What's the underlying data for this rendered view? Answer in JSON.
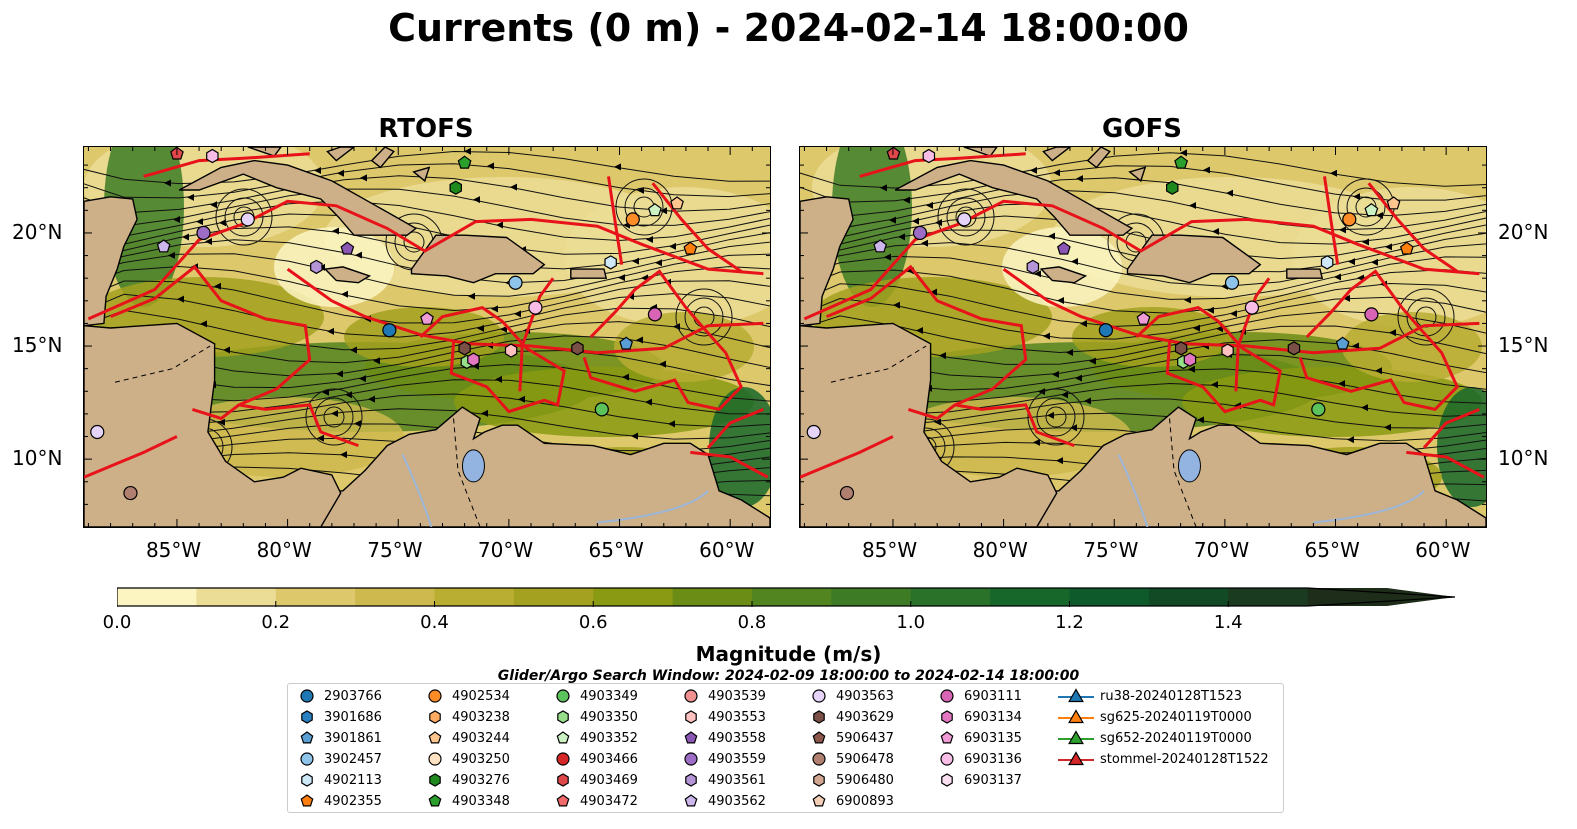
{
  "title": "Currents (0 m) - 2024-02-14 18:00:00",
  "panels": [
    {
      "title": "RTOFS"
    },
    {
      "title": "GOFS"
    }
  ],
  "axes": {
    "x_ticks": [
      "85°W",
      "80°W",
      "75°W",
      "70°W",
      "65°W",
      "60°W"
    ],
    "y_ticks": [
      "20°N",
      "15°N",
      "10°N"
    ]
  },
  "colorbar": {
    "label": "Magnitude (m/s)",
    "ticks": [
      "0.0",
      "0.2",
      "0.4",
      "0.6",
      "0.8",
      "1.0",
      "1.2",
      "1.4"
    ],
    "colors": [
      "#fcf5c2",
      "#ecdd96",
      "#ddc86c",
      "#cdb94e",
      "#b9ad32",
      "#a3a11f",
      "#8a9a12",
      "#6b8c15",
      "#528420",
      "#3d7b25",
      "#2a7229",
      "#17672b",
      "#0f5a2b",
      "#114a25",
      "#1a3b20",
      "#1e2d1a"
    ]
  },
  "search_window": "Glider/Argo Search Window: 2024-02-09 18:00:00 to 2024-02-14 18:00:00",
  "legend": {
    "columns": [
      [
        {
          "label": "2903766",
          "marker": "circle",
          "color": "#1f77b4"
        },
        {
          "label": "3901686",
          "marker": "hexagon",
          "color": "#2a7fc0"
        },
        {
          "label": "3901861",
          "marker": "pentagon",
          "color": "#5a9fd4"
        },
        {
          "label": "3902457",
          "marker": "circle",
          "color": "#8ec3ea"
        },
        {
          "label": "4902113",
          "marker": "hexagon",
          "color": "#cfe8f8"
        },
        {
          "label": "4902355",
          "marker": "pentagon",
          "color": "#ff7f0e"
        }
      ],
      [
        {
          "label": "4902534",
          "marker": "circle",
          "color": "#ff8c26"
        },
        {
          "label": "4903238",
          "marker": "hexagon",
          "color": "#ffab62"
        },
        {
          "label": "4903244",
          "marker": "pentagon",
          "color": "#ffc58f"
        },
        {
          "label": "4903250",
          "marker": "circle",
          "color": "#ffe2c2"
        },
        {
          "label": "4903276",
          "marker": "hexagon",
          "color": "#1e8a1e"
        },
        {
          "label": "4903348",
          "marker": "pentagon",
          "color": "#2ca02c"
        }
      ],
      [
        {
          "label": "4903349",
          "marker": "circle",
          "color": "#5cc25c"
        },
        {
          "label": "4903350",
          "marker": "hexagon",
          "color": "#98df8a"
        },
        {
          "label": "4903352",
          "marker": "pentagon",
          "color": "#ccf2c4"
        },
        {
          "label": "4903466",
          "marker": "circle",
          "color": "#d62728"
        },
        {
          "label": "4903469",
          "marker": "hexagon",
          "color": "#e0474a"
        },
        {
          "label": "4903472",
          "marker": "pentagon",
          "color": "#f06a6a"
        }
      ],
      [
        {
          "label": "4903539",
          "marker": "circle",
          "color": "#f09090"
        },
        {
          "label": "4903553",
          "marker": "hexagon",
          "color": "#ffc0c0"
        },
        {
          "label": "4903558",
          "marker": "pentagon",
          "color": "#8c56b4"
        },
        {
          "label": "4903559",
          "marker": "circle",
          "color": "#9d6dc6"
        },
        {
          "label": "4903561",
          "marker": "hexagon",
          "color": "#b594d8"
        },
        {
          "label": "4903562",
          "marker": "pentagon",
          "color": "#cdb6ec"
        }
      ],
      [
        {
          "label": "4903563",
          "marker": "circle",
          "color": "#e5d4f8"
        },
        {
          "label": "4903629",
          "marker": "hexagon",
          "color": "#7a4f45"
        },
        {
          "label": "5906437",
          "marker": "pentagon",
          "color": "#8c564b"
        },
        {
          "label": "5906478",
          "marker": "circle",
          "color": "#b07f70"
        },
        {
          "label": "5906480",
          "marker": "hexagon",
          "color": "#d2a690"
        },
        {
          "label": "6900893",
          "marker": "pentagon",
          "color": "#f2cfb6"
        }
      ],
      [
        {
          "label": "6903111",
          "marker": "circle",
          "color": "#d764b4"
        },
        {
          "label": "6903134",
          "marker": "hexagon",
          "color": "#e377c2"
        },
        {
          "label": "6903135",
          "marker": "pentagon",
          "color": "#ee9bd6"
        },
        {
          "label": "6903136",
          "marker": "circle",
          "color": "#f7bde6"
        },
        {
          "label": "6903137",
          "marker": "hexagon",
          "color": "#fbe0f2"
        }
      ],
      [
        {
          "label": "ru38-20240128T1523",
          "marker": "triangle-line",
          "color": "#1f77b4"
        },
        {
          "label": "sg625-20240119T0000",
          "marker": "triangle-line",
          "color": "#ff7f0e"
        },
        {
          "label": "sg652-20240119T0000",
          "marker": "triangle-line",
          "color": "#2ca02c"
        },
        {
          "label": "stommel-20240128T1522",
          "marker": "triangle-line",
          "color": "#d62728"
        }
      ]
    ]
  }
}
